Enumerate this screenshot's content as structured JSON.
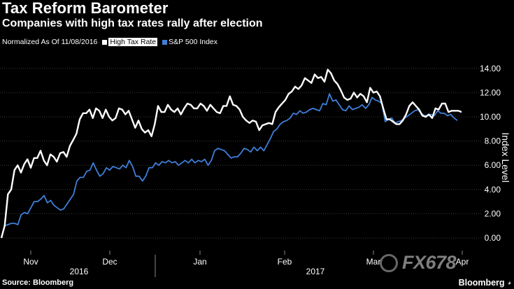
{
  "header": {
    "title": "Tax Reform Barometer",
    "subtitle": "Companies with high tax rates rally after election"
  },
  "legend": {
    "note": "Normalized As Of 11/08/2016",
    "items": [
      {
        "label": "High Tax Rate",
        "color": "#ffffff"
      },
      {
        "label": "S&P 500 Index",
        "color": "#3f7fd9"
      }
    ]
  },
  "footer": {
    "source": "Source: Bloomberg",
    "brand": "Bloomberg",
    "watermark": "FX678"
  },
  "chart_data": {
    "type": "line",
    "ylabel": "Index Level",
    "y_axis_position": "right",
    "ylim": [
      -1,
      15
    ],
    "yticks": [
      "0.00",
      "2.00",
      "4.00",
      "6.00",
      "8.00",
      "10.00",
      "12.00",
      "14.00"
    ],
    "ytick_values": [
      0,
      2,
      4,
      6,
      8,
      10,
      12,
      14
    ],
    "xlim": [
      0,
      160
    ],
    "month_ticks": [
      {
        "label": "Nov",
        "x": 18
      },
      {
        "label": "Dec",
        "x": 48
      },
      {
        "label": "Jan",
        "x": 87
      },
      {
        "label": "Feb",
        "x": 124
      },
      {
        "label": "Mar",
        "x": 162
      },
      {
        "label": "Apr",
        "x": 200
      }
    ],
    "year_labels": [
      {
        "label": "2016",
        "x": 33
      },
      {
        "label": "2017",
        "x": 136
      }
    ],
    "grid": true,
    "series": [
      {
        "name": "High Tax Rate",
        "color": "#ffffff",
        "values": [
          0.0,
          1.0,
          3.6,
          4.0,
          5.6,
          6.0,
          5.4,
          6.1,
          6.5,
          5.8,
          6.6,
          6.6,
          7.2,
          6.4,
          6.0,
          6.9,
          6.7,
          6.3,
          7.0,
          7.1,
          6.7,
          7.6,
          8.1,
          8.6,
          9.8,
          10.3,
          10.3,
          10.6,
          9.9,
          10.7,
          10.5,
          9.9,
          10.6,
          10.0,
          9.7,
          9.9,
          10.7,
          10.6,
          10.2,
          10.5,
          9.8,
          9.1,
          9.7,
          9.0,
          8.7,
          8.9,
          8.4,
          9.4,
          10.9,
          10.4,
          10.4,
          11.0,
          10.6,
          10.4,
          10.7,
          10.2,
          10.7,
          11.1,
          11.0,
          10.7,
          10.7,
          11.1,
          10.9,
          10.5,
          11.0,
          10.7,
          10.4,
          10.3,
          10.9,
          10.9,
          11.7,
          11.0,
          10.9,
          10.6,
          10.0,
          9.7,
          9.5,
          9.7,
          9.6,
          8.9,
          9.3,
          9.4,
          9.5,
          9.4,
          10.4,
          10.8,
          11.1,
          11.4,
          11.9,
          12.1,
          12.5,
          12.3,
          12.6,
          13.2,
          13.0,
          12.8,
          13.5,
          13.2,
          13.3,
          12.9,
          13.9,
          13.6,
          13.0,
          12.7,
          12.2,
          11.6,
          11.4,
          11.5,
          12.0,
          11.6,
          11.9,
          11.7,
          11.2,
          12.4,
          12.0,
          12.1,
          11.7,
          10.7,
          9.8,
          9.8,
          9.6,
          9.4,
          9.4,
          9.7,
          10.2,
          10.9,
          11.2,
          10.9,
          10.6,
          10.1,
          10.0,
          10.2,
          9.9,
          10.7,
          10.6,
          11.1,
          11.1,
          10.4,
          10.5,
          10.5,
          10.5,
          10.4
        ]
      },
      {
        "name": "S&P 500 Index",
        "color": "#3f7fd9",
        "values": [
          0.0,
          1.0,
          1.1,
          1.2,
          1.2,
          1.1,
          1.9,
          2.1,
          2.0,
          2.5,
          3.0,
          3.0,
          3.2,
          3.5,
          2.9,
          3.1,
          2.7,
          2.5,
          2.3,
          2.4,
          2.8,
          3.2,
          3.6,
          4.7,
          5.0,
          5.0,
          5.5,
          5.6,
          6.2,
          5.6,
          5.1,
          5.3,
          5.8,
          5.6,
          5.9,
          5.8,
          5.7,
          6.0,
          5.8,
          6.4,
          5.9,
          5.1,
          5.1,
          4.7,
          5.1,
          5.8,
          5.8,
          6.2,
          6.0,
          6.3,
          6.2,
          6.4,
          6.2,
          6.3,
          6.0,
          6.2,
          6.4,
          6.2,
          6.5,
          6.2,
          6.4,
          6.3,
          6.5,
          6.0,
          6.4,
          7.2,
          7.4,
          7.3,
          7.2,
          6.9,
          6.6,
          6.7,
          6.7,
          7.0,
          7.4,
          7.3,
          7.1,
          7.5,
          7.2,
          7.5,
          7.2,
          7.7,
          8.2,
          8.8,
          9.0,
          9.4,
          9.6,
          9.7,
          9.9,
          10.3,
          10.2,
          10.5,
          10.3,
          10.4,
          10.6,
          10.7,
          10.6,
          10.5,
          11.1,
          11.0,
          11.9,
          11.3,
          11.4,
          11.0,
          10.6,
          10.5,
          10.9,
          10.6,
          10.7,
          10.8,
          11.0,
          10.7,
          11.0,
          11.6,
          11.4,
          11.3,
          11.1,
          9.6,
          9.8,
          9.9,
          9.5,
          9.6,
          9.7,
          9.9,
          10.1,
          10.3,
          10.5,
          10.6,
          10.3,
          10.1,
          10.1,
          10.2,
          10.1,
          10.5,
          10.3,
          10.3,
          10.1,
          10.2,
          9.9,
          9.7
        ]
      }
    ]
  }
}
